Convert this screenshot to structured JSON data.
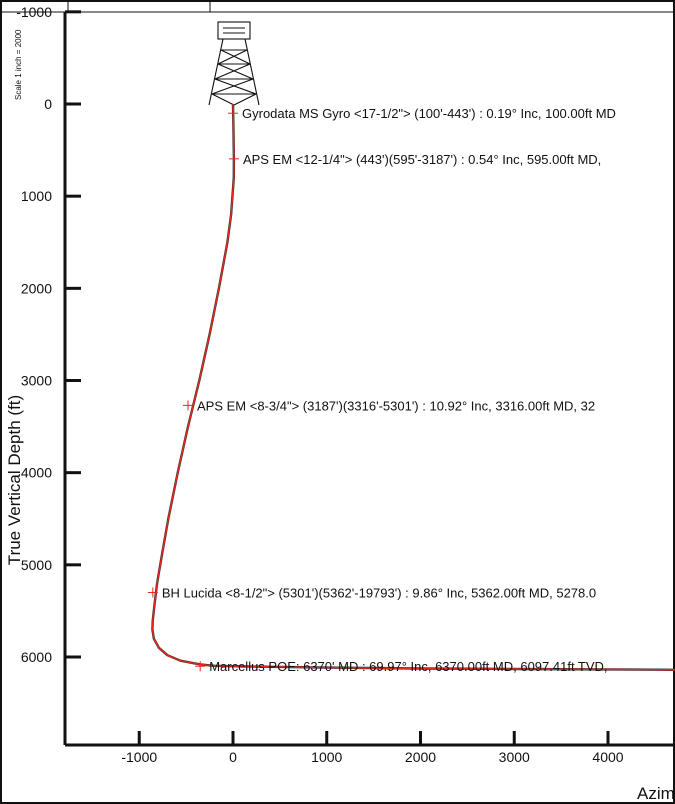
{
  "scale_note": "Scale 1 inch = 2000",
  "chart_data": {
    "type": "line",
    "ylabel": "True Vertical Depth (ft)",
    "xlabel": "Azim",
    "y_inverted": true,
    "xlim": [
      -1500,
      4800
    ],
    "ylim": [
      -1000,
      6950
    ],
    "x_ticks": [
      -1000,
      0,
      1000,
      2000,
      3000,
      4000
    ],
    "y_ticks": [
      -1000,
      0,
      1000,
      2000,
      3000,
      4000,
      5000,
      6000
    ],
    "grid": false,
    "series": [
      {
        "color": "#e8261c",
        "x": [
          0,
          5,
          10,
          8,
          -20,
          -60,
          -150,
          -250,
          -360,
          -480,
          -590,
          -690,
          -760,
          -810,
          -840,
          -855,
          -860,
          -845,
          -790,
          -700,
          -560,
          -350,
          -200,
          0,
          1000,
          2000,
          3000,
          4000,
          4800
        ],
        "y": [
          0,
          300,
          595,
          800,
          1200,
          1500,
          2000,
          2500,
          3000,
          3500,
          4000,
          4500,
          4900,
          5200,
          5450,
          5600,
          5700,
          5800,
          5900,
          5980,
          6040,
          6080,
          6095,
          6100,
          6115,
          6125,
          6130,
          6135,
          6140
        ]
      }
    ],
    "annotations": [
      {
        "text": "Gyrodata MS Gyro <17-1/2\"> (100'-443') : 0.19° Inc, 100.00ft MD",
        "x": 0,
        "y": 100
      },
      {
        "text": "APS EM <12-1/4\"> (443')(595'-3187') : 0.54° Inc, 595.00ft MD,",
        "x": 10,
        "y": 595
      },
      {
        "text": "APS EM <8-3/4\"> (3187')(3316'-5301') : 10.92° Inc, 3316.00ft MD, 32",
        "x": -480,
        "y": 3270
      },
      {
        "text": "BH Lucida <8-1/2\"> (5301')(5362'-19793') : 9.86° Inc, 5362.00ft MD, 5278.0",
        "x": -855,
        "y": 5300
      },
      {
        "text": "Marcellus POE: 6370' MD : 69.97° Inc, 6370.00ft MD, 6097.41ft TVD,",
        "x": -350,
        "y": 6100
      }
    ]
  }
}
